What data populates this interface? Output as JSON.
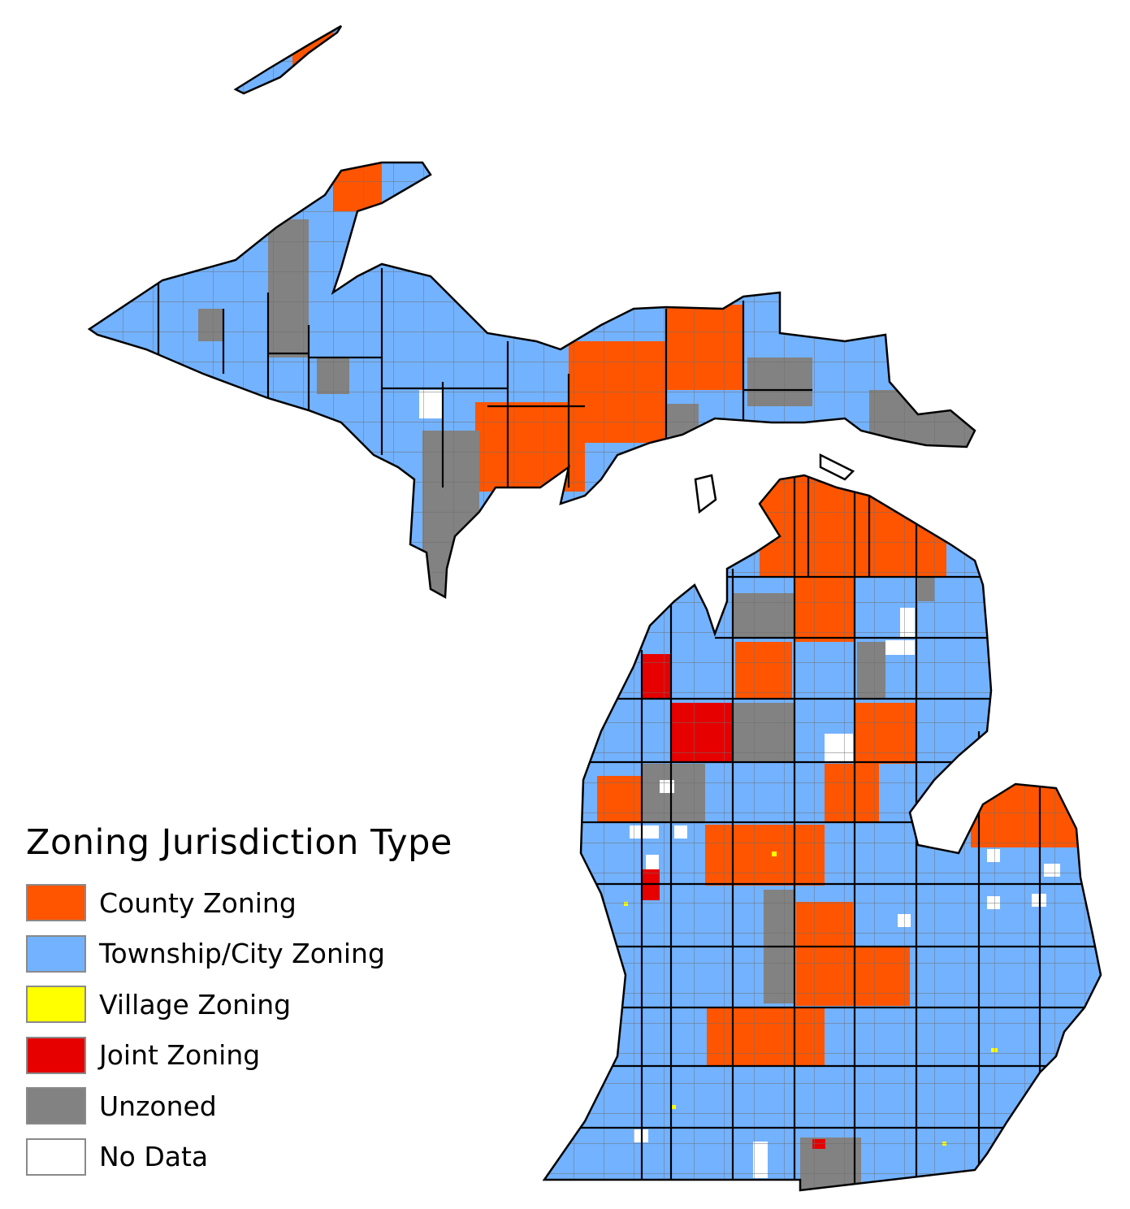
{
  "legend": {
    "title": "Zoning Jurisdiction Type",
    "items": [
      {
        "label": "County Zoning",
        "color": "#FF5500"
      },
      {
        "label": "Township/City Zoning",
        "color": "#73B2FF"
      },
      {
        "label": "Village Zoning",
        "color": "#FFFF00"
      },
      {
        "label": "Joint Zoning",
        "color": "#E60000"
      },
      {
        "label": "Unzoned",
        "color": "#828282"
      },
      {
        "label": "No Data",
        "color": "#FFFFFF"
      }
    ]
  },
  "colors": {
    "county": "#FF5500",
    "township": "#73B2FF",
    "village": "#FFFF00",
    "joint": "#E60000",
    "unzoned": "#828282",
    "nodata": "#FFFFFF",
    "county_border": "#000000",
    "township_border": "#6e6e6e"
  }
}
